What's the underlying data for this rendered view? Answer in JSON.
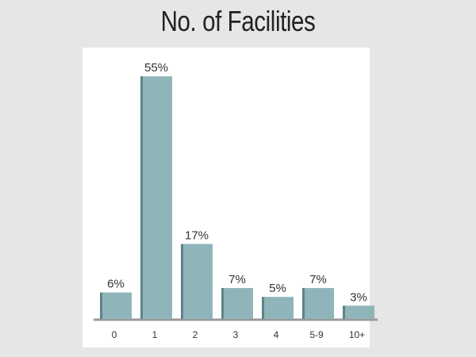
{
  "chart_data": {
    "type": "bar",
    "title": "No. of Facilities",
    "categories": [
      "0",
      "1",
      "2",
      "3",
      "4",
      "5-9",
      "10+"
    ],
    "values": [
      6,
      55,
      17,
      7,
      5,
      7,
      3
    ],
    "data_labels": [
      "6%",
      "55%",
      "17%",
      "7%",
      "5%",
      "7%",
      "3%"
    ],
    "xlabel": "",
    "ylabel": "",
    "ylim": [
      0,
      60
    ],
    "grid": false,
    "colors": {
      "bar": "#8fb5ba",
      "bar_side": "#5e8388",
      "axis": "#999999"
    }
  }
}
